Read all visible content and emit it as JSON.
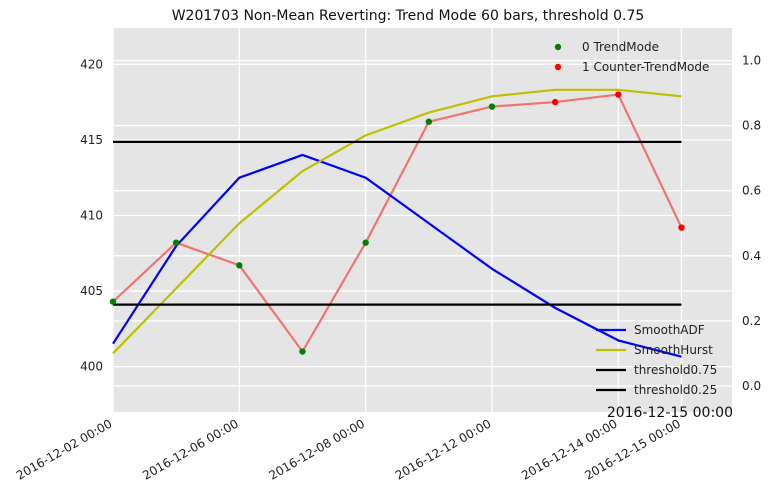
{
  "chart_data": {
    "type": "line",
    "title": "W201703 Non-Mean Reverting: Trend Mode 60 bars, threshold 0.75",
    "x_tick_labels": [
      "2016-12-02 00:00",
      "2016-12-06 00:00",
      "2016-12-08 00:00",
      "2016-12-12 00:00",
      "2016-12-14 00:00",
      "2016-12-15 00:00"
    ],
    "x_tick_positions": [
      0,
      2,
      4,
      6,
      8,
      9
    ],
    "corner_label": "2016-12-15 00:00",
    "xlim": [
      0,
      9.8
    ],
    "ylim_left": [
      397,
      422.4
    ],
    "ylim_right": [
      -0.08,
      1.1
    ],
    "y_ticks_left": [
      400,
      405,
      410,
      415,
      420
    ],
    "y_ticks_right": [
      0.0,
      0.2,
      0.4,
      0.6,
      0.8,
      1.0
    ],
    "grid": true,
    "price_series": {
      "color": "#f07470",
      "x": [
        0,
        1,
        2,
        3,
        4,
        5,
        6,
        7,
        8,
        9
      ],
      "values": [
        404.3,
        408.2,
        406.7,
        401.0,
        408.2,
        416.2,
        417.2,
        417.5,
        418.0,
        409.2
      ]
    },
    "series": [
      {
        "name": "SmoothADF",
        "color": "#0000ff",
        "axis": "right",
        "x": [
          0,
          1,
          2,
          3,
          4,
          5,
          6,
          7,
          8,
          9
        ],
        "values": [
          0.13,
          0.43,
          0.64,
          0.71,
          0.64,
          0.5,
          0.36,
          0.24,
          0.14,
          0.09
        ]
      },
      {
        "name": "SmoothHurst",
        "color": "#bfbf00",
        "axis": "right",
        "x": [
          0,
          1,
          2,
          3,
          4,
          5,
          6,
          7,
          8,
          9
        ],
        "values": [
          0.1,
          0.3,
          0.5,
          0.66,
          0.77,
          0.84,
          0.89,
          0.91,
          0.91,
          0.89
        ]
      },
      {
        "name": "threshold0.75",
        "color": "#000000",
        "axis": "right",
        "x": [
          0,
          9
        ],
        "values": [
          0.75,
          0.75
        ]
      },
      {
        "name": "threshold0.25",
        "color": "#000000",
        "axis": "right",
        "x": [
          0,
          9
        ],
        "values": [
          0.25,
          0.25
        ]
      }
    ],
    "points": [
      {
        "x": 0,
        "y": 404.3,
        "mode": 0
      },
      {
        "x": 1,
        "y": 408.2,
        "mode": 0
      },
      {
        "x": 2,
        "y": 406.7,
        "mode": 0
      },
      {
        "x": 3,
        "y": 401.0,
        "mode": 0
      },
      {
        "x": 4,
        "y": 408.2,
        "mode": 0
      },
      {
        "x": 5,
        "y": 416.2,
        "mode": 0
      },
      {
        "x": 6,
        "y": 417.2,
        "mode": 0
      },
      {
        "x": 7,
        "y": 417.5,
        "mode": 1
      },
      {
        "x": 8,
        "y": 418.0,
        "mode": 1
      },
      {
        "x": 9,
        "y": 409.2,
        "mode": 1
      }
    ],
    "scatter_legend": [
      {
        "label": "0 TrendMode",
        "color": "#008000"
      },
      {
        "label": "1 Counter-TrendMode",
        "color": "#ff0000"
      }
    ],
    "legend_placement": {
      "scatter": "top-right",
      "lines": "bottom-right"
    }
  }
}
